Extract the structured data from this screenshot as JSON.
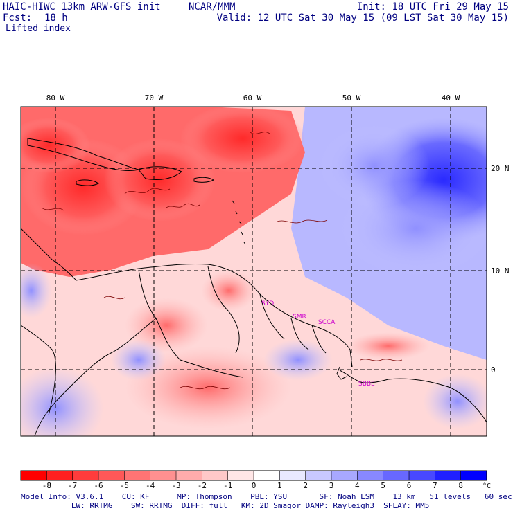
{
  "header": {
    "model_title": "HAIC-HIWC 13km ARW-GFS init",
    "org": "NCAR/MMM",
    "init_time": "Init: 18 UTC Fri 29 May 15",
    "forecast_label": "Fcst:",
    "forecast_hours": "18 h",
    "valid_time": "Valid: 12 UTC Sat 30 May 15 (09 LST Sat 30 May 15)",
    "field_name": "Lifted index"
  },
  "map": {
    "longitude_labels": [
      "80 W",
      "70 W",
      "60 W",
      "50 W",
      "40 W"
    ],
    "latitude_labels": [
      "20 N",
      "10 N",
      "0"
    ],
    "station_labels": [
      "SYD",
      "SMR",
      "SCCA",
      "SBBE"
    ],
    "colors": {
      "strong_negative": "#ff0000",
      "moderate_negative": "#ff6060",
      "weak_negative": "#ffc8c8",
      "neutral": "#ffffff",
      "weak_positive": "#c8c8ff",
      "moderate_positive": "#7a7aff",
      "strong_positive": "#0000ff",
      "station_label": "#cc00cc"
    }
  },
  "colorbar": {
    "ticks": [
      "-8",
      "-7",
      "-6",
      "-5",
      "-4",
      "-3",
      "-2",
      "-1",
      "0",
      "1",
      "2",
      "3",
      "4",
      "5",
      "6",
      "7",
      "8"
    ],
    "unit": "°C",
    "colors": [
      "#ff0000",
      "#ff2020",
      "#ff3c3c",
      "#ff5858",
      "#ff7474",
      "#ff9090",
      "#ffacac",
      "#ffc8c8",
      "#ffe6e6",
      "#ffffff",
      "#e8e8ff",
      "#c8c8ff",
      "#a8a8ff",
      "#8888ff",
      "#6868ff",
      "#4848ff",
      "#2020ff",
      "#0000ff"
    ]
  },
  "footer": {
    "line1": "Model Info: V3.6.1    CU: KF      MP: Thompson    PBL: YSU       SF: Noah LSM    13 km   51 levels   60 sec",
    "line2": "           LW: RRTMG    SW: RRTMG  DIFF: full   KM: 2D Smagor DAMP: Rayleigh3  SFLAY: MM5"
  }
}
